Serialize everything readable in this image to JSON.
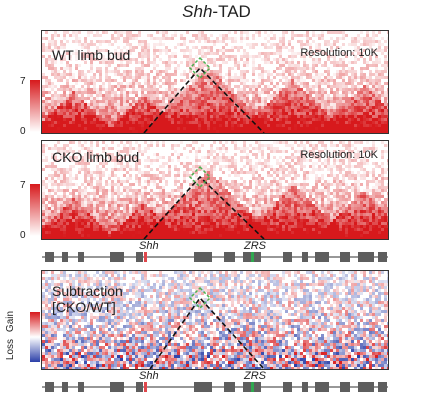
{
  "figure": {
    "title_gene": "Shh",
    "title_suffix": "-TAD"
  },
  "panels": [
    {
      "label": "WT limb bud",
      "resolution": "Resolution: 10K",
      "colorbar_max": "7",
      "colorbar_min": "0",
      "colormap": [
        "#ffffff",
        "#d7191c"
      ]
    },
    {
      "label": "CKO limb bud",
      "resolution": "Resolution: 10K",
      "colorbar_max": "7",
      "colorbar_min": "0",
      "colormap": [
        "#ffffff",
        "#d7191c"
      ]
    },
    {
      "label_line1": "Subtraction",
      "label_line2": "[CKO/WT]",
      "colorbar_top": "Gain",
      "colorbar_bottom": "Loss",
      "colormap": [
        "#2b3fa8",
        "#ffffff",
        "#d7191c"
      ]
    }
  ],
  "track": {
    "gene_labels": [
      "Shh",
      "ZRS"
    ],
    "colors": {
      "exon": "#5e5e5e",
      "shh": "#e0474c",
      "zrs": "#2fa84f",
      "line": "#777777"
    }
  },
  "highlight": {
    "color": "#4caf50"
  }
}
